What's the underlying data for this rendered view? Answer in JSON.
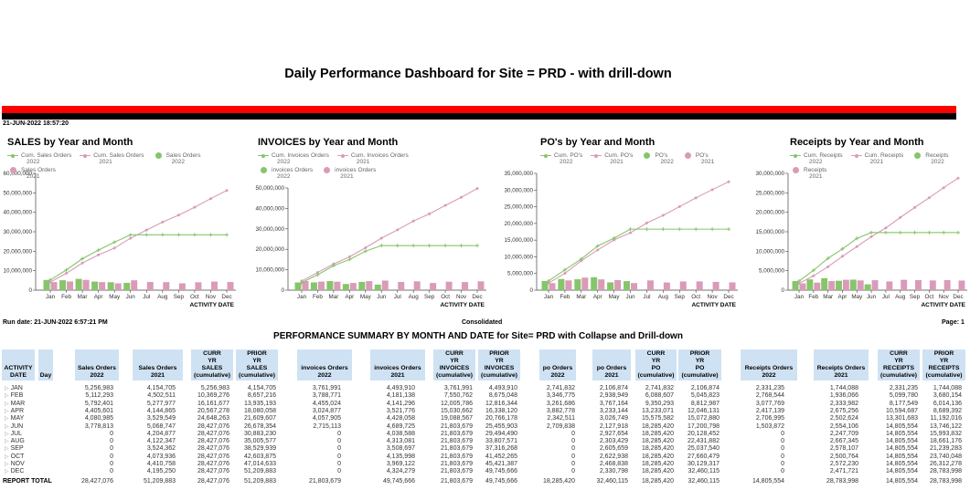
{
  "header": {
    "title": "Daily Performance Dashboard for Site = PRD - with drill-down",
    "timestamp": "21-JUN-2022 18:57:20"
  },
  "colors": {
    "green": "#86c56a",
    "pink": "#d99bb8",
    "band_red": "#ff0000",
    "band_black": "#000000",
    "header_cell": "#cfe2f3"
  },
  "chart_data": [
    {
      "type": "bar+line",
      "title": "SALES by Year and Month",
      "xlabel": "ACTIVITY DATE",
      "ylim": [
        0,
        60000000
      ],
      "y_ticks": [
        "0",
        "10,000,000",
        "20,000,000",
        "30,000,000",
        "40,000,000",
        "50,000,000",
        "60,000,000"
      ],
      "categories": [
        "Jan",
        "Feb",
        "Mar",
        "Apr",
        "May",
        "Jun",
        "Jul",
        "Aug",
        "Sep",
        "Oct",
        "Nov",
        "Dec"
      ],
      "legend": [
        "Cum. Sales Orders 2022",
        "Cum. Sales Orders 2021",
        "Sales Orders 2022",
        "Sales Orders 2021"
      ],
      "series": [
        {
          "name": "Cum. Sales Orders 2022",
          "kind": "line",
          "values": [
            5256983,
            10369276,
            16161677,
            20567278,
            24648263,
            28427076,
            28427076,
            28427076,
            28427076,
            28427076,
            28427076,
            28427076
          ]
        },
        {
          "name": "Cum. Sales Orders 2021",
          "kind": "line",
          "values": [
            4154705,
            8657216,
            13935193,
            18080058,
            21609607,
            26678354,
            30883230,
            35005577,
            38529939,
            42603875,
            47014633,
            51209883
          ]
        },
        {
          "name": "Sales Orders 2022",
          "kind": "bar",
          "values": [
            5256983,
            5112293,
            5792401,
            4405601,
            4080985,
            3778813,
            0,
            0,
            0,
            0,
            0,
            0
          ]
        },
        {
          "name": "Sales Orders 2021",
          "kind": "bar",
          "values": [
            4154705,
            4502511,
            5277977,
            4144865,
            3529549,
            5068747,
            4204877,
            4122347,
            3524362,
            4073936,
            4410758,
            4195250
          ]
        }
      ]
    },
    {
      "type": "bar+line",
      "title": "INVOICES by Year and Month",
      "xlabel": "ACTIVITY DATE",
      "ylim": [
        0,
        50000000
      ],
      "y_ticks": [
        "0",
        "10,000,000",
        "20,000,000",
        "30,000,000",
        "40,000,000",
        "50,000,000"
      ],
      "categories": [
        "Jan",
        "Feb",
        "Mar",
        "Apr",
        "May",
        "Jun",
        "Jul",
        "Aug",
        "Sep",
        "Oct",
        "Nov",
        "Dec"
      ],
      "legend": [
        "Cum. Invoices Orders 2022",
        "Cum. Invoices Orders 2021",
        "invoices Orders 2022",
        "invoices Orders 2021"
      ],
      "series": [
        {
          "name": "Cum. Invoices Orders 2022",
          "kind": "line",
          "values": [
            3761991,
            7550762,
            12005786,
            15030662,
            19088567,
            21803679,
            21803679,
            21803679,
            21803679,
            21803679,
            21803679,
            21803679
          ]
        },
        {
          "name": "Cum. Invoices Orders 2021",
          "kind": "line",
          "values": [
            4493910,
            8675048,
            12816344,
            16338120,
            20766178,
            25455903,
            29494490,
            33807571,
            37316268,
            41452265,
            45421387,
            49745666
          ]
        },
        {
          "name": "invoices Orders 2022",
          "kind": "bar",
          "values": [
            3761991,
            3788771,
            4455024,
            3024877,
            4057905,
            2715113,
            0,
            0,
            0,
            0,
            0,
            0
          ]
        },
        {
          "name": "invoices Orders 2021",
          "kind": "bar",
          "values": [
            4493910,
            4181138,
            4141296,
            3521776,
            4428058,
            4689725,
            4038588,
            4313081,
            3508697,
            4135998,
            3969122,
            4324279
          ]
        }
      ]
    },
    {
      "type": "bar+line",
      "title": "PO's by Year and Month",
      "xlabel": "ACTIVITY DATE",
      "ylim": [
        0,
        35000000
      ],
      "y_ticks": [
        "0",
        "5,000,000",
        "10,000,000",
        "15,000,000",
        "20,000,000",
        "25,000,000",
        "30,000,000",
        "35,000,000"
      ],
      "categories": [
        "Jan",
        "Feb",
        "Mar",
        "Apr",
        "May",
        "Jun",
        "Jul",
        "Aug",
        "Sep",
        "Oct",
        "Nov",
        "Dec"
      ],
      "legend": [
        "Cum. PO's 2022",
        "Cum. PO's 2021",
        "PO's 2022",
        "PO's 2021"
      ],
      "series": [
        {
          "name": "Cum. PO's 2022",
          "kind": "line",
          "values": [
            2741832,
            6088607,
            9350293,
            13233071,
            15575582,
            18285420,
            18285420,
            18285420,
            18285420,
            18285420,
            18285420,
            18285420
          ]
        },
        {
          "name": "Cum. PO's 2021",
          "kind": "line",
          "values": [
            2106874,
            5045823,
            8812987,
            12046131,
            15072880,
            17200798,
            20128452,
            22431882,
            25037540,
            27660479,
            30129317,
            32460115
          ]
        },
        {
          "name": "PO's 2022",
          "kind": "bar",
          "values": [
            2741832,
            3346775,
            3261686,
            3882778,
            2342511,
            2709838,
            0,
            0,
            0,
            0,
            0,
            0
          ]
        },
        {
          "name": "PO's 2021",
          "kind": "bar",
          "values": [
            2106874,
            2938949,
            3767164,
            3233144,
            3026749,
            2127918,
            2927654,
            2303429,
            2605659,
            2622938,
            2468838,
            2330798
          ]
        }
      ]
    },
    {
      "type": "bar+line",
      "title": "Receipts by Year and Month",
      "xlabel": "ACTIVITY DATE",
      "ylim": [
        0,
        30000000
      ],
      "y_ticks": [
        "0",
        "5,000,000",
        "10,000,000",
        "15,000,000",
        "20,000,000",
        "25,000,000",
        "30,000,000"
      ],
      "categories": [
        "Jan",
        "Feb",
        "Mar",
        "Apr",
        "May",
        "Jun",
        "Jul",
        "Aug",
        "Sep",
        "Oct",
        "Nov",
        "Dec"
      ],
      "legend": [
        "Cum. Receipts 2022",
        "Cum. Receipts 2021",
        "Receipts 2022",
        "Receipts 2021"
      ],
      "series": [
        {
          "name": "Cum. Receipts 2022",
          "kind": "line",
          "values": [
            2331235,
            5099780,
            8177549,
            10594687,
            13301683,
            14805554,
            14805554,
            14805554,
            14805554,
            14805554,
            14805554,
            14805554
          ]
        },
        {
          "name": "Cum. Receipts 2021",
          "kind": "line",
          "values": [
            1744088,
            3680154,
            6014136,
            8689392,
            11192016,
            13746122,
            15993832,
            18661176,
            21239283,
            23740048,
            26312278,
            28783998
          ]
        },
        {
          "name": "Receipts 2022",
          "kind": "bar",
          "values": [
            2331235,
            2768544,
            3077769,
            2417139,
            2706995,
            1503872,
            0,
            0,
            0,
            0,
            0,
            0
          ]
        },
        {
          "name": "Receipts 2021",
          "kind": "bar",
          "values": [
            1744088,
            1936066,
            2333982,
            2675256,
            2502624,
            2554106,
            2247709,
            2667345,
            2578107,
            2500764,
            2572230,
            2471721
          ]
        }
      ]
    }
  ],
  "report": {
    "run_date": "Run date: 21-JUN-2022  6:57:21 PM",
    "scope": "Consolidated",
    "page": "Page: 1",
    "title": "PERFORMANCE SUMMARY BY MONTH AND DATE for Site= PRD with Collapse and Drill-down",
    "headers": [
      [
        "ACTIVITY",
        "DATE"
      ],
      [
        "Day"
      ],
      [
        "Sales Orders",
        "2022"
      ],
      [
        "Sales Orders",
        "2021"
      ],
      [
        "CURR",
        "YR",
        "SALES",
        "(cumulative)"
      ],
      [
        "PRIOR",
        "YR",
        "SALES",
        "(cumulative)"
      ],
      [
        "invoices Orders",
        "2022"
      ],
      [
        "invoices Orders",
        "2021"
      ],
      [
        "CURR",
        "YR",
        "INVOICES",
        "(cumulative)"
      ],
      [
        "PRIOR",
        "YR",
        "INVOICES",
        "(cumulative)"
      ],
      [
        "po Orders",
        "2022"
      ],
      [
        "po Orders",
        "2021"
      ],
      [
        "CURR",
        "YR",
        "PO",
        "(cumulative)"
      ],
      [
        "PRIOR",
        "YR",
        "PO",
        "(cumulative)"
      ],
      [
        "Receipts Orders",
        "2022"
      ],
      [
        "Receipts Orders",
        "2021"
      ],
      [
        "CURR",
        "YR",
        "RECEIPTS",
        "(cumulative)"
      ],
      [
        "PRIOR",
        "YR",
        "RECEIPTS",
        "(cumulative)"
      ]
    ],
    "months": [
      "JAN",
      "FEB",
      "MAR",
      "APR",
      "MAY",
      "JUN",
      "JUL",
      "AUG",
      "SEP",
      "OCT",
      "NOV",
      "DEC"
    ],
    "row_icon": "expand-triangle-icon",
    "total_label": "REPORT TOTAL",
    "totals": [
      "28,427,076",
      "51,209,883",
      "28,427,076",
      "51,209,883",
      "21,803,679",
      "49,745,666",
      "21,803,679",
      "49,745,666",
      "18,285,420",
      "32,460,115",
      "18,285,420",
      "32,460,115",
      "14,805,554",
      "28,783,998",
      "14,805,554",
      "28,783,998"
    ]
  }
}
